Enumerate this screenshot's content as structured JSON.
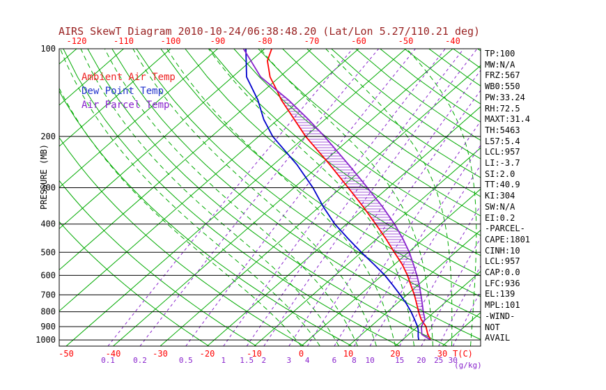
{
  "title": "AIRS SkewT Diagram 2010-10-24/06:38:48.20 (Lat/Lon 5.27/110.21 deg)",
  "axes": {
    "y_label": "PRESSURE (MB)",
    "pressure_ticks": [
      100,
      200,
      300,
      400,
      500,
      600,
      700,
      800,
      900,
      1000
    ],
    "top_temp_ticks": [
      -120,
      -110,
      -100,
      -90,
      -80,
      -70,
      -60,
      -50,
      -40
    ],
    "bottom_temp_ticks": [
      -50,
      -40,
      -30,
      -20,
      -10,
      0,
      10,
      20,
      30
    ],
    "bottom_temp_unit": "T(C)",
    "mixing_ratio_ticks": [
      0.1,
      0.2,
      0.5,
      1,
      1.5,
      2,
      3,
      4,
      6,
      8,
      10,
      15,
      20,
      25,
      30
    ],
    "mixing_ratio_unit": "(g/kg)"
  },
  "legend": [
    {
      "label": "Ambient Air Temp",
      "color": "#ee2222"
    },
    {
      "label": "Dew Point Temp",
      "color": "#2233cc"
    },
    {
      "label": "Air Parcel Temp",
      "color": "#8822cc"
    }
  ],
  "stats": [
    "TP:100",
    "MW:N/A",
    "FRZ:567",
    "WB0:550",
    "PW:33.24",
    "RH:72.5",
    "MAXT:31.4",
    "TH:5463",
    "L57:5.4",
    "LCL:957",
    "LI:-3.7",
    "SI:2.0",
    "TT:40.9",
    "KI:304",
    "SW:N/A",
    "EI:0.2",
    "-PARCEL-",
    "CAPE:1801",
    "CINH:10",
    "LCL:957",
    "CAP:0.0",
    "LFC:936",
    "EL:139",
    "MPL:101",
    "-WIND-",
    "NOT",
    "AVAIL"
  ],
  "colors": {
    "title": "#992222",
    "grid_green": "#00aa00",
    "isobar": "#000000",
    "temp_axis": "#ff0000",
    "mixing": "#8822cc",
    "ambient": "#ff0000",
    "dewpoint": "#0000cc",
    "parcel": "#8822cc",
    "hatch": "#8822cc"
  },
  "chart_data": {
    "type": "line",
    "subtype": "skew-t-log-p",
    "title": "AIRS SkewT Diagram 2010-10-24/06:38:48.20 (Lat/Lon 5.27/110.21 deg)",
    "xlabel": "T(C)",
    "ylabel": "PRESSURE (MB)",
    "pressure_axis": {
      "min": 100,
      "max": 1050,
      "scale": "log",
      "ticks": [
        100,
        200,
        300,
        400,
        500,
        600,
        700,
        800,
        900,
        1000
      ]
    },
    "temp_axis": {
      "unit": "C",
      "skewed": true,
      "ticks_top": [
        -120,
        -110,
        -100,
        -90,
        -80,
        -70,
        -60,
        -50,
        -40
      ],
      "ticks_bottom": [
        -50,
        -40,
        -30,
        -20,
        -10,
        0,
        10,
        20,
        30
      ]
    },
    "isotherms_c": {
      "min": -130,
      "max": 40,
      "step": 10
    },
    "dry_adiabats_k": {
      "min": 250,
      "max": 470,
      "step": 10
    },
    "moist_adiabat_starts_c": [
      0,
      4,
      8,
      12,
      16,
      20,
      24,
      28,
      32,
      36
    ],
    "mixing_ratio_lines_gkg": [
      0.1,
      0.2,
      0.5,
      1,
      1.5,
      2,
      3,
      4,
      6,
      8,
      10,
      15,
      20,
      25,
      30
    ],
    "cape_hatch": {
      "from_mb": 936,
      "to_mb": 139
    },
    "series": [
      {
        "name": "Ambient Air Temp",
        "points_mb_c": [
          [
            1000,
            26
          ],
          [
            975,
            24.9
          ],
          [
            950,
            23.8
          ],
          [
            925,
            22.8
          ],
          [
            900,
            21.8
          ],
          [
            850,
            19
          ],
          [
            800,
            16.6
          ],
          [
            750,
            14.2
          ],
          [
            700,
            11.6
          ],
          [
            650,
            8.6
          ],
          [
            600,
            5.4
          ],
          [
            550,
            1.6
          ],
          [
            500,
            -3
          ],
          [
            450,
            -8
          ],
          [
            400,
            -13.8
          ],
          [
            350,
            -20.5
          ],
          [
            300,
            -28.5
          ],
          [
            250,
            -38
          ],
          [
            200,
            -50
          ],
          [
            175,
            -56.5
          ],
          [
            150,
            -64
          ],
          [
            139,
            -67.3
          ],
          [
            125,
            -72
          ],
          [
            110,
            -76.5
          ],
          [
            100,
            -78.5
          ]
        ]
      },
      {
        "name": "Dew Point Temp",
        "points_mb_c": [
          [
            1000,
            23.5
          ],
          [
            975,
            22.6
          ],
          [
            950,
            21.8
          ],
          [
            925,
            21
          ],
          [
            900,
            20
          ],
          [
            850,
            17.6
          ],
          [
            800,
            15
          ],
          [
            750,
            12
          ],
          [
            700,
            8.6
          ],
          [
            650,
            4.8
          ],
          [
            600,
            0.6
          ],
          [
            550,
            -4.4
          ],
          [
            500,
            -10
          ],
          [
            450,
            -16
          ],
          [
            400,
            -22.5
          ],
          [
            350,
            -29
          ],
          [
            300,
            -36
          ],
          [
            250,
            -45
          ],
          [
            200,
            -57
          ],
          [
            175,
            -63
          ],
          [
            150,
            -69
          ],
          [
            125,
            -77
          ],
          [
            100,
            -84
          ]
        ]
      },
      {
        "name": "Air Parcel Temp",
        "points_mb_c": [
          [
            1000,
            26
          ],
          [
            957,
            22.8
          ],
          [
            925,
            21.7
          ],
          [
            900,
            20.8
          ],
          [
            850,
            19.8
          ],
          [
            800,
            17.6
          ],
          [
            750,
            15.4
          ],
          [
            700,
            13
          ],
          [
            650,
            10.4
          ],
          [
            600,
            7.4
          ],
          [
            550,
            4
          ],
          [
            500,
            0.2
          ],
          [
            450,
            -4.4
          ],
          [
            400,
            -9.8
          ],
          [
            350,
            -16.4
          ],
          [
            300,
            -24.4
          ],
          [
            250,
            -34
          ],
          [
            200,
            -46
          ],
          [
            175,
            -53.5
          ],
          [
            150,
            -62.5
          ],
          [
            139,
            -67.3
          ],
          [
            125,
            -74
          ],
          [
            110,
            -80
          ],
          [
            100,
            -84.5
          ]
        ]
      }
    ]
  }
}
